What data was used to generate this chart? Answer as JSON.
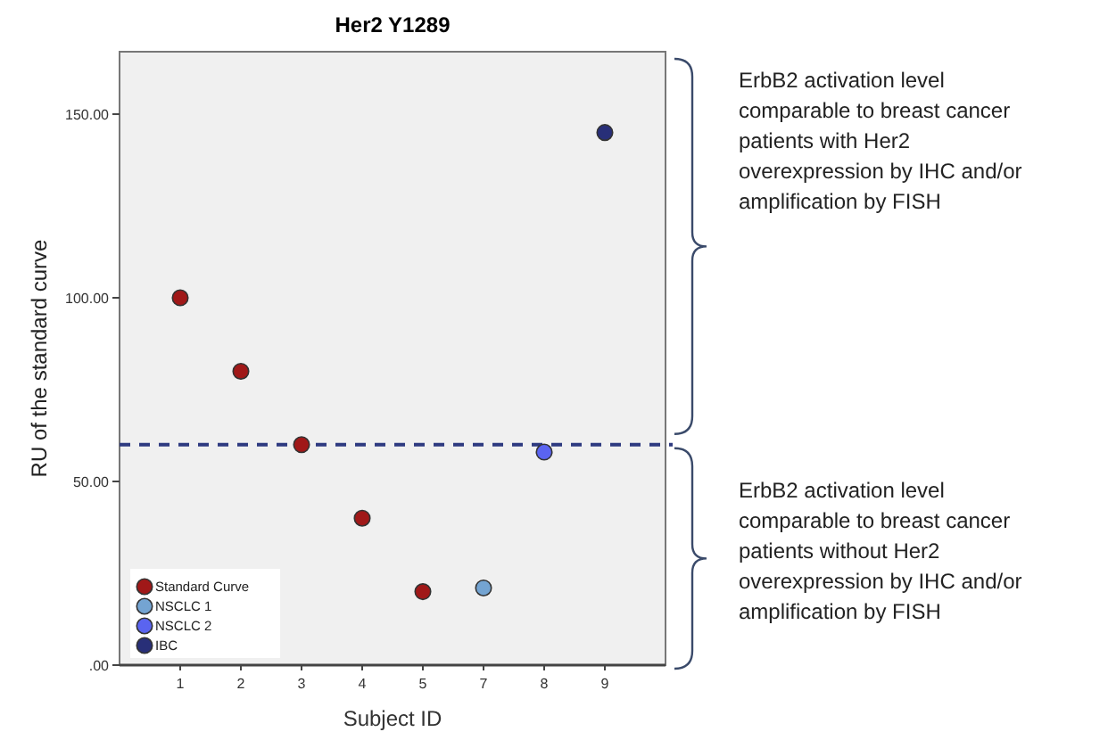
{
  "chart_data": {
    "type": "scatter",
    "title": "Her2 Y1289",
    "xlabel": "Subject ID",
    "ylabel": "RU  of the standard curve",
    "categories": [
      "1",
      "2",
      "3",
      "4",
      "5",
      "7",
      "8",
      "9"
    ],
    "series": [
      {
        "name": "Standard Curve",
        "color": "#a01818",
        "values": [
          100,
          80,
          60,
          40,
          20,
          null,
          null,
          null
        ]
      },
      {
        "name": "NSCLC 1",
        "color": "#74a4d2",
        "values": [
          null,
          null,
          null,
          null,
          null,
          21,
          null,
          null
        ]
      },
      {
        "name": "NSCLC 2",
        "color": "#5a64f0",
        "values": [
          null,
          null,
          null,
          null,
          null,
          null,
          58,
          null
        ]
      },
      {
        "name": "IBC",
        "color": "#282f78",
        "values": [
          null,
          null,
          null,
          null,
          null,
          null,
          null,
          145
        ]
      }
    ],
    "ylim": [
      0,
      167
    ],
    "yticks": [
      {
        "value": 0,
        "label": ".00"
      },
      {
        "value": 50,
        "label": "50.00"
      },
      {
        "value": 100,
        "label": "100.00"
      },
      {
        "value": 150,
        "label": "150.00"
      }
    ],
    "ref_lines": [
      {
        "axis": "y",
        "value": 60,
        "color": "#2e3a80",
        "line_style": "dashed"
      }
    ],
    "marker": "circle",
    "grid": false,
    "legend": "bottom left",
    "annotations": [
      "ErbB2 activation level comparable to breast cancer patients with Her2 overexpression by IHC and/or amplification by FISH",
      "ErbB2 activation level comparable to breast cancer patients without Her2 overexpression by IHC and/or amplification by FISH"
    ]
  }
}
